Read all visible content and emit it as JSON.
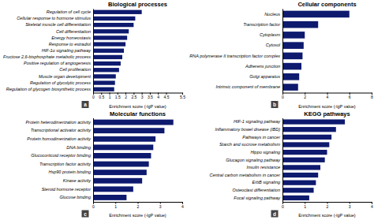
{
  "chart_data": [
    {
      "type": "bar",
      "orientation": "horizontal",
      "title": "Biological processes",
      "xlabel": "Enrichment score (-lgP value)",
      "annotations": [
        {
          "text": "a",
          "color": "#444444"
        }
      ],
      "categories": [
        "Regulation of glycogen biosynthetic process",
        "Regulation of glycolytic process",
        "Muscle organ development",
        "Cell proliferation",
        "Positive regulation of angiogenesis",
        "Fructose 2,6-bisphosphate metabolic process",
        "HIF-1α signaling pathway",
        "Response to estradiol",
        "Energy homeostasis",
        "Cell differentiation",
        "Skeletal muscle cell differentiation",
        "Cellular response to hormone stimulus",
        "Regulation of cell cycle"
      ],
      "values": [
        1.3,
        1.35,
        1.4,
        1.6,
        1.7,
        1.8,
        1.9,
        2.0,
        2.1,
        2.2,
        2.5,
        2.6,
        3.0
      ],
      "color": "#0d1a6e",
      "xlim": [
        0,
        5.5
      ],
      "xticks": [
        0,
        0.5,
        1,
        1.5,
        2,
        2.5,
        3,
        3.5,
        4,
        4.5,
        5.5
      ]
    },
    {
      "type": "bar",
      "orientation": "horizontal",
      "title": "Cellular components",
      "xlabel": "Enrichment score (-lgP value)",
      "annotations": [
        {
          "text": "b",
          "color": "#444444"
        }
      ],
      "categories": [
        "Intrinsic component of membrane",
        "Golgi apparatus",
        "Adherens junction",
        "RNA polymerase II transcription factor complex",
        "Cytosol",
        "Cytoplasm",
        "Transcription factor",
        "Nucleus"
      ],
      "values": [
        1.4,
        1.5,
        1.7,
        1.8,
        1.9,
        2.0,
        3.2,
        6.0
      ],
      "color": "#0d1a6e",
      "xlim": [
        0,
        8
      ],
      "xticks": [
        0,
        2,
        4,
        6,
        8
      ]
    },
    {
      "type": "bar",
      "orientation": "horizontal",
      "title": "Molecular functions",
      "xlabel": "Enrichment score (-lgP value)",
      "annotations": [
        {
          "text": "c",
          "color": "#444444"
        }
      ],
      "categories": [
        "Glucose binding",
        "Steroid hormone receptor",
        "Kinase activity",
        "Hsp90 protein binding",
        "Transcription factor activity",
        "Glucocorticoid receptor binding",
        "DNA binding",
        "Protein homodimerization activity",
        "Transcriptional activator activity",
        "Protein heterodimerization activity"
      ],
      "values": [
        1.5,
        1.8,
        2.2,
        2.4,
        2.5,
        2.6,
        2.7,
        2.8,
        3.2,
        3.6
      ],
      "color": "#0d1a6e",
      "xlim": [
        0,
        4
      ],
      "xticks": [
        0,
        1,
        2,
        3,
        4
      ]
    },
    {
      "type": "bar",
      "orientation": "horizontal",
      "title": "KEGG pathways",
      "xlabel": "Enrichment score (-lgP value)",
      "annotations": [
        {
          "text": "d",
          "color": "#444444"
        }
      ],
      "categories": [
        "Focal signaling pathway",
        "Osteoclast differentiation",
        "ErbB signaling",
        "Central carbon metabolism in cancer",
        "Insulin resistance",
        "Glucagon signaling pathway",
        "Hippo signaling",
        "Starch and sucrose metabolism",
        "Pathways in cancer",
        "Inflammatory bowel disease (IBD)",
        "HIF-1 signaling pathway"
      ],
      "values": [
        1.2,
        1.4,
        1.5,
        1.6,
        1.7,
        1.9,
        2.0,
        2.1,
        2.2,
        2.4,
        2.8
      ],
      "color": "#0d1a6e",
      "xlim": [
        0,
        4
      ],
      "xticks": [
        0,
        1,
        2,
        3,
        4
      ]
    }
  ]
}
